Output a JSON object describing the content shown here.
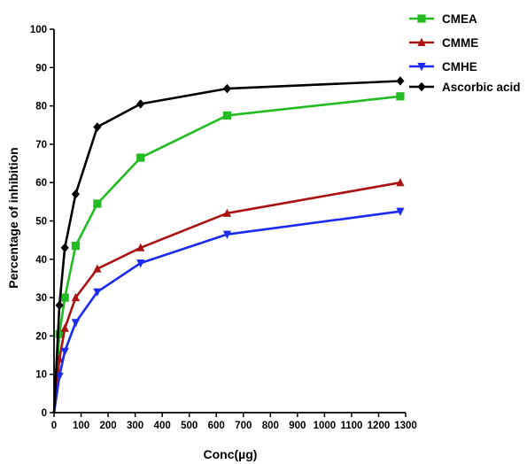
{
  "chart_data": {
    "type": "line",
    "title": "",
    "xlabel": "Conc(µg)",
    "ylabel": "Percentage of inhibition",
    "xlim": [
      0,
      1300
    ],
    "ylim": [
      0,
      100
    ],
    "xticks": [
      0,
      100,
      200,
      300,
      400,
      500,
      600,
      700,
      800,
      900,
      1000,
      1100,
      1200,
      1300
    ],
    "yticks": [
      0,
      10,
      20,
      30,
      40,
      50,
      60,
      70,
      80,
      90,
      100
    ],
    "xtick_labels": [
      "0",
      "100",
      "200",
      "300",
      "400",
      "500",
      "600",
      "700",
      "800",
      "900",
      "1000",
      "1100",
      "1200",
      "1300"
    ],
    "ytick_labels": [
      "0",
      "10",
      "20",
      "30",
      "40",
      "50",
      "60",
      "70",
      "80",
      "90",
      "100"
    ],
    "grid": false,
    "legend_position": "top-right",
    "series": [
      {
        "name": "CMEA",
        "color": "#22bb22",
        "marker": "square",
        "x": [
          0,
          20,
          40,
          80,
          160,
          320,
          640,
          1280
        ],
        "y": [
          0,
          20.5,
          30,
          43.5,
          54.5,
          66.5,
          77.5,
          82.5
        ]
      },
      {
        "name": "CMME",
        "color": "#aa1111",
        "marker": "triangle-up",
        "x": [
          0,
          20,
          40,
          80,
          160,
          320,
          640,
          1280
        ],
        "y": [
          0,
          14,
          22,
          30,
          37.5,
          43,
          52,
          60
        ]
      },
      {
        "name": "CMHE",
        "color": "#1a2aee",
        "marker": "triangle-down",
        "x": [
          0,
          20,
          40,
          80,
          160,
          320,
          640,
          1280
        ],
        "y": [
          0,
          9.5,
          16,
          23.5,
          31.5,
          39,
          46.5,
          52.5
        ]
      },
      {
        "name": "Ascorbic acid",
        "color": "#000000",
        "marker": "diamond",
        "x": [
          0,
          20,
          40,
          80,
          160,
          320,
          640,
          1280
        ],
        "y": [
          0,
          28,
          43,
          57,
          74.5,
          80.5,
          84.5,
          86.5
        ]
      }
    ]
  }
}
